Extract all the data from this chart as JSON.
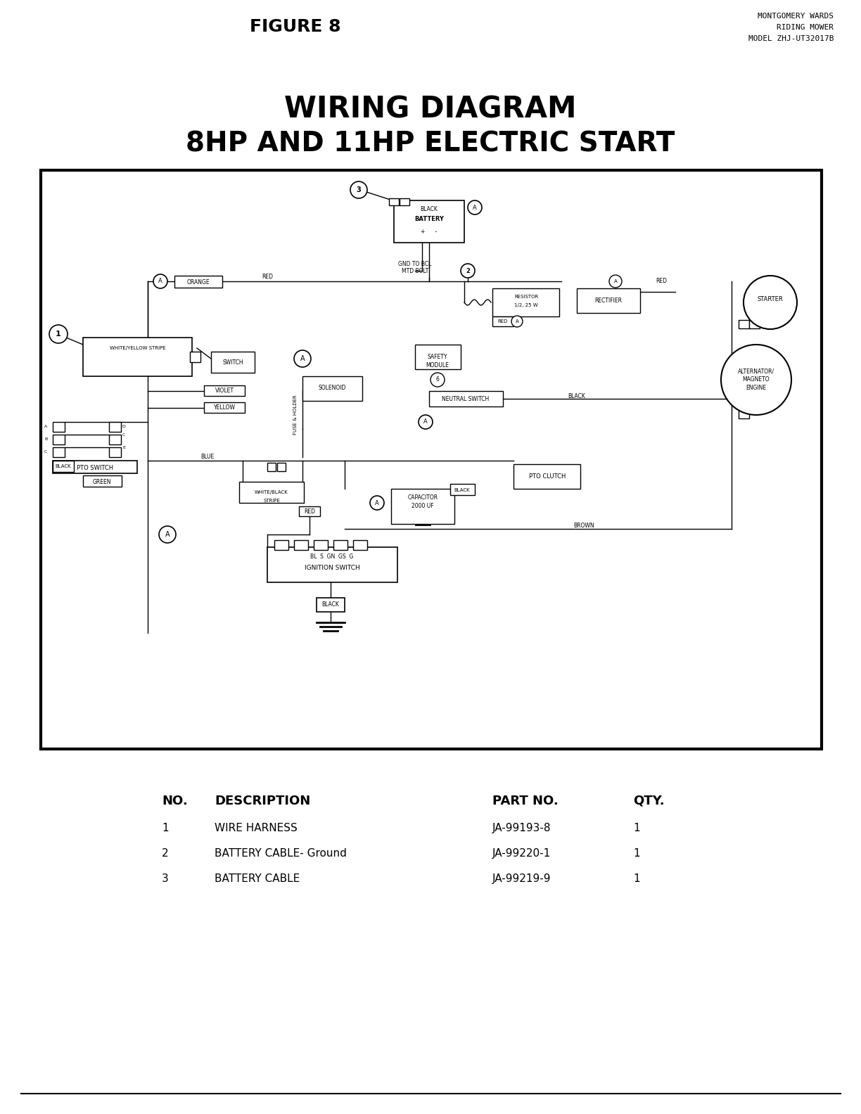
{
  "page_bg": "#ffffff",
  "figure_label": "FIGURE 8",
  "top_right_lines": [
    "MONTGOMERY WARDS",
    "RIDING MOWER",
    "MODEL ZHJ-UT32017B"
  ],
  "title_line1": "WIRING DIAGRAM",
  "title_line2": "8HP AND 11HP ELECTRIC START",
  "parts_table_header": [
    "NO.",
    "DESCRIPTION",
    "PART NO.",
    "QTY."
  ],
  "parts_rows": [
    [
      "1",
      "WIRE HARNESS",
      "JA-99193-8",
      "1"
    ],
    [
      "2",
      "BATTERY CABLE- Ground",
      "JA-99220-1",
      "1"
    ],
    [
      "3",
      "BATTERY CABLE",
      "JA-99219-9",
      "1"
    ]
  ]
}
